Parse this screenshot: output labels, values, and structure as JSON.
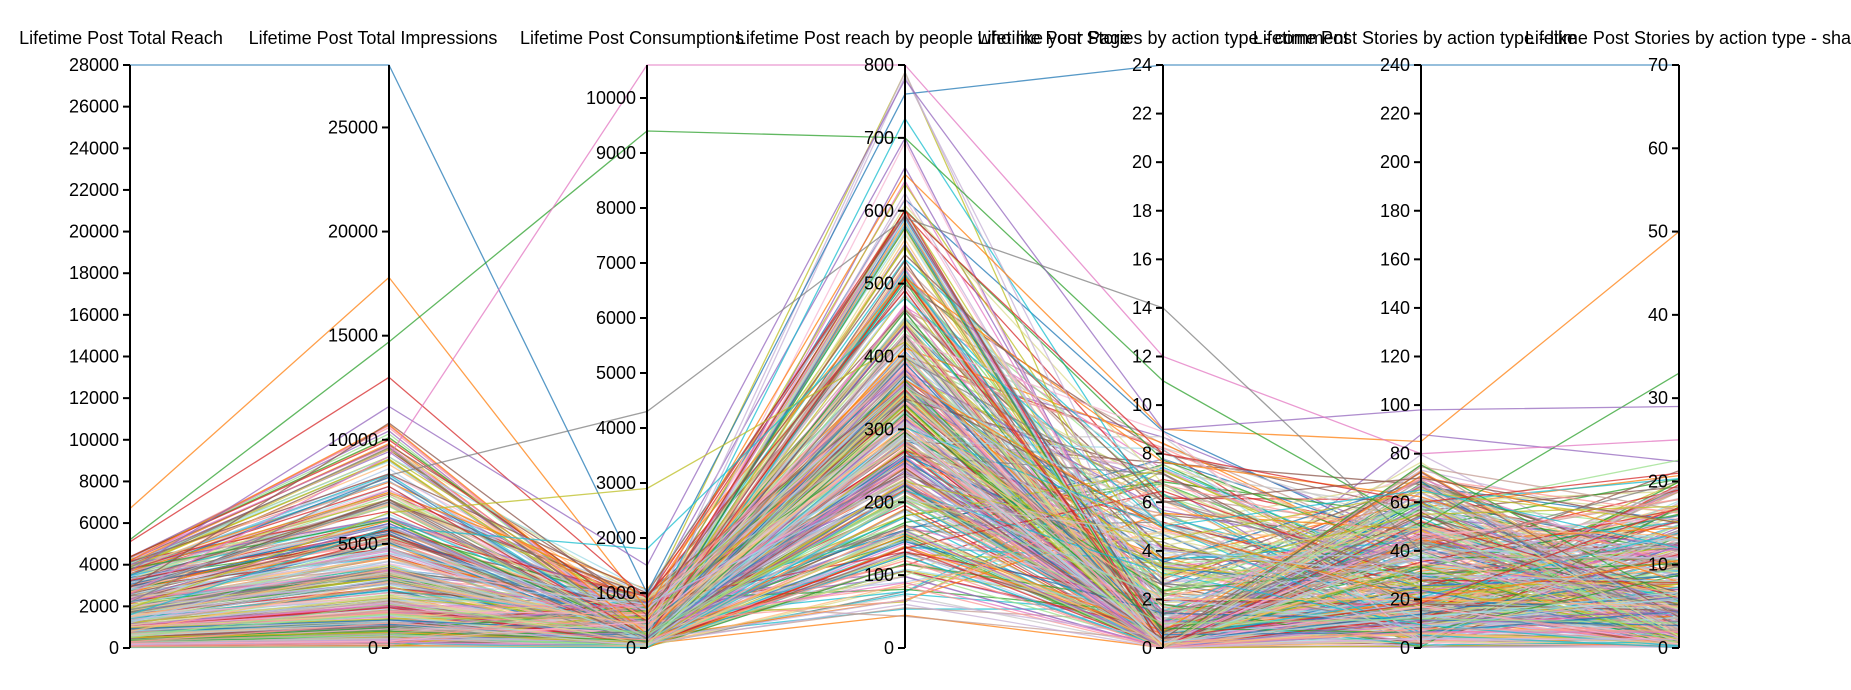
{
  "chart_data": {
    "type": "parallel_coordinates",
    "axes": [
      {
        "name": "Lifetime Post Total Reach",
        "domain": [
          0,
          28000
        ],
        "ticks": [
          0,
          2000,
          4000,
          6000,
          8000,
          10000,
          12000,
          14000,
          16000,
          18000,
          20000,
          22000,
          24000,
          26000,
          28000
        ]
      },
      {
        "name": "Lifetime Post Total Impressions",
        "domain": [
          0,
          28000
        ],
        "ticks": [
          0,
          5000,
          10000,
          15000,
          20000,
          25000
        ]
      },
      {
        "name": "Lifetime Post Consumptions",
        "domain": [
          0,
          10600
        ],
        "ticks": [
          0,
          1000,
          2000,
          3000,
          4000,
          5000,
          6000,
          7000,
          8000,
          9000,
          10000
        ]
      },
      {
        "name": "Lifetime Post reach by people who like your Page",
        "domain": [
          0,
          800
        ],
        "ticks": [
          0,
          100,
          200,
          300,
          400,
          500,
          600,
          700,
          800
        ]
      },
      {
        "name": "Lifetime Post Stories by action type - comment",
        "domain": [
          0,
          24
        ],
        "ticks": [
          0,
          2,
          4,
          6,
          8,
          10,
          12,
          14,
          16,
          18,
          20,
          22,
          24
        ]
      },
      {
        "name": "Lifetime Post Stories by action type - like",
        "domain": [
          0,
          240
        ],
        "ticks": [
          0,
          20,
          40,
          60,
          80,
          100,
          120,
          140,
          160,
          180,
          200,
          220,
          240
        ]
      },
      {
        "name": "Lifetime Post Stories by action type - share",
        "domain": [
          0,
          70
        ],
        "ticks": [
          0,
          10,
          20,
          30,
          40,
          50,
          60,
          70
        ]
      }
    ],
    "highlighted_records": [
      [
        28000,
        28000,
        1000,
        760,
        24,
        240,
        70
      ],
      [
        6700,
        17800,
        700,
        650,
        9,
        85,
        50
      ],
      [
        5200,
        14700,
        9400,
        700,
        11,
        50,
        33
      ],
      [
        5100,
        13000,
        900,
        600,
        8,
        60,
        21
      ],
      [
        3700,
        11600,
        1500,
        780,
        9,
        98,
        29
      ],
      [
        2900,
        10800,
        600,
        540,
        6,
        70,
        15
      ],
      [
        2600,
        9200,
        10600,
        800,
        12,
        80,
        25
      ],
      [
        2200,
        8300,
        4300,
        590,
        14,
        40,
        20
      ],
      [
        1900,
        6500,
        2900,
        420,
        3,
        55,
        17
      ],
      [
        1600,
        5800,
        1800,
        480,
        5,
        65,
        12
      ],
      [
        1200,
        4900,
        700,
        360,
        4,
        30,
        8
      ],
      [
        800,
        3200,
        400,
        300,
        2,
        20,
        5
      ],
      [
        500,
        2100,
        250,
        200,
        1,
        12,
        3
      ],
      [
        300,
        1200,
        150,
        120,
        0,
        8,
        2
      ],
      [
        150,
        600,
        80,
        60,
        0,
        4,
        1
      ]
    ],
    "record_count": 420,
    "colors": [
      "#1f77b4",
      "#ff7f0e",
      "#2ca02c",
      "#d62728",
      "#9467bd",
      "#8c564b",
      "#e377c2",
      "#7f7f7f",
      "#bcbd22",
      "#17becf",
      "#aec7e8",
      "#ffbb78",
      "#98df8a",
      "#ff9896",
      "#c5b0d5",
      "#c49c94",
      "#f7b6d2",
      "#c7c7c7",
      "#dbdb8d",
      "#9edae5"
    ],
    "grid": false,
    "legend": "none"
  }
}
